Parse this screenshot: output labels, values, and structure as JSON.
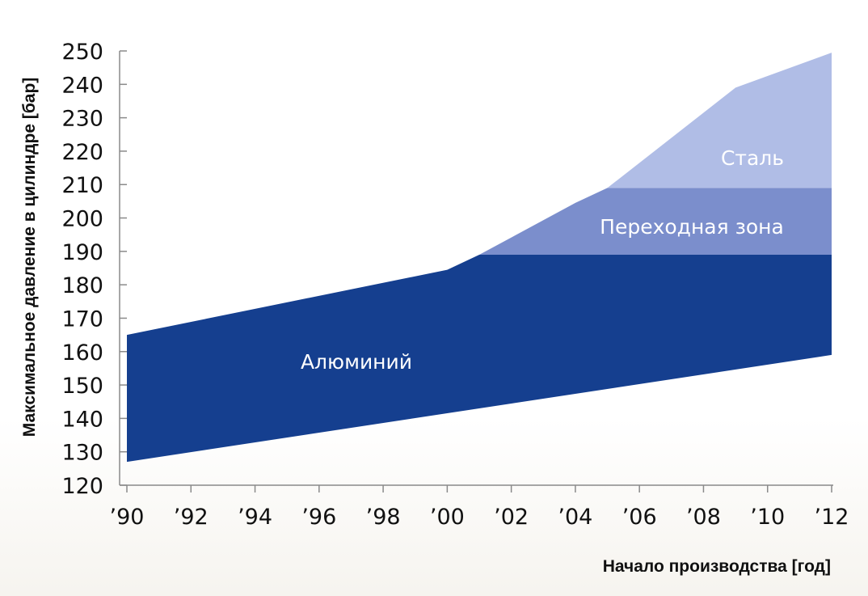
{
  "chart_data": {
    "type": "area",
    "x_ticks": [
      "’90",
      "’92",
      "’94",
      "’96",
      "’98",
      "’00",
      "’02",
      "’04",
      "’06",
      "’08",
      "’10",
      "’12"
    ],
    "x_values": [
      1990,
      1992,
      1994,
      1996,
      1998,
      2000,
      2002,
      2004,
      2006,
      2008,
      2010,
      2012
    ],
    "xlim": [
      1990,
      2012
    ],
    "ylim": [
      120,
      250
    ],
    "y_ticks": [
      120,
      130,
      140,
      150,
      160,
      170,
      180,
      190,
      200,
      210,
      220,
      230,
      240,
      250
    ],
    "xlabel": "Начало производства [год]",
    "ylabel": "Максимальное давление в цилиндре [бар]",
    "grid": false,
    "bands": [
      {
        "name": "Алюминий",
        "color": "#153f8f",
        "lower": [
          [
            1990,
            127
          ],
          [
            2012,
            159
          ]
        ],
        "upper": [
          [
            1990,
            165
          ],
          [
            2000,
            184.5
          ],
          [
            2001,
            189
          ],
          [
            2012,
            189
          ]
        ]
      },
      {
        "name": "Переходная зона",
        "color": "#7b8ecc",
        "lower": [
          [
            2001,
            189
          ],
          [
            2012,
            189
          ]
        ],
        "upper": [
          [
            2001,
            189
          ],
          [
            2004,
            204.5
          ],
          [
            2005,
            209
          ],
          [
            2012,
            209
          ]
        ]
      },
      {
        "name": "Сталь",
        "color": "#b0bde6",
        "lower": [
          [
            2005,
            209
          ],
          [
            2012,
            209
          ]
        ],
        "upper": [
          [
            2005,
            209
          ],
          [
            2009,
            239
          ],
          [
            2012,
            249.5
          ]
        ]
      }
    ]
  }
}
